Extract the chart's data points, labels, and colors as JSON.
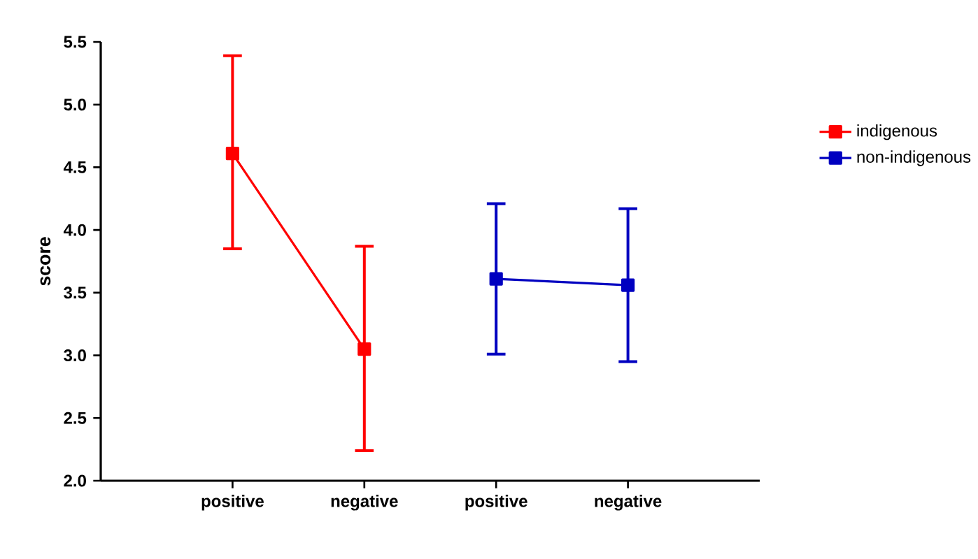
{
  "chart_data": {
    "type": "line",
    "ylabel": "score",
    "categories": [
      "positive",
      "negative",
      "positive",
      "negative"
    ],
    "series": [
      {
        "name": "indigenous",
        "color": "#ff0000",
        "values": [
          4.61,
          3.05,
          null,
          null
        ],
        "errors": [
          [
            3.85,
            5.39
          ],
          [
            2.24,
            3.87
          ],
          null,
          null
        ]
      },
      {
        "name": "non-indigenous",
        "color": "#0000c0",
        "values": [
          null,
          null,
          3.61,
          3.56
        ],
        "errors": [
          null,
          null,
          [
            3.01,
            4.21
          ],
          [
            2.95,
            4.17
          ]
        ]
      }
    ],
    "ylim": [
      2.0,
      5.5
    ],
    "yticks": [
      {
        "value": 2.0,
        "label": "2.0"
      },
      {
        "value": 2.5,
        "label": "2.5"
      },
      {
        "value": 3.0,
        "label": "3.0"
      },
      {
        "value": 3.5,
        "label": "3.5"
      },
      {
        "value": 4.0,
        "label": "4.0"
      },
      {
        "value": 4.5,
        "label": "4.5"
      },
      {
        "value": 5.0,
        "label": "5.0"
      },
      {
        "value": 5.5,
        "label": "5.5"
      }
    ],
    "grid": false,
    "legend": "top right",
    "marker": "square",
    "line_style": "solid"
  }
}
